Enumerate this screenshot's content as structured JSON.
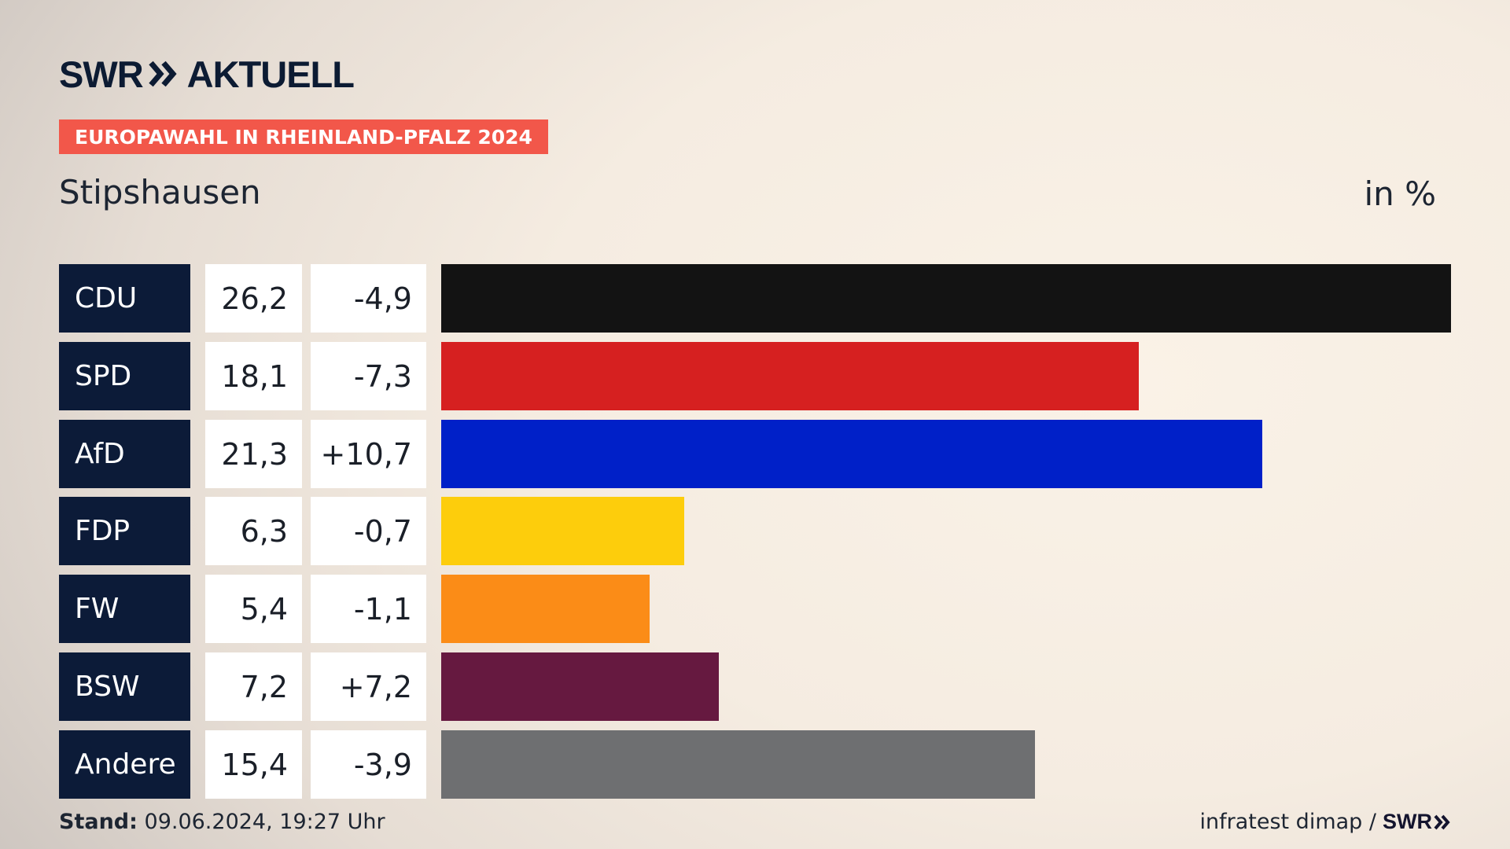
{
  "header": {
    "logo_left": "SWR",
    "logo_right": "AKTUELL",
    "tag": "EUROPAWAHL IN RHEINLAND-PFALZ 2024",
    "subtitle": "Stipshausen",
    "unit": "in %"
  },
  "colors": {
    "tag": "#f2574a",
    "party_box": "#0c1b38",
    "logo": "#0c1b33"
  },
  "chart_data": {
    "type": "bar",
    "orientation": "horizontal",
    "title": "Stipshausen",
    "unit": "in %",
    "categories": [
      "CDU",
      "SPD",
      "AfD",
      "FDP",
      "FW",
      "BSW",
      "Andere"
    ],
    "values": [
      26.2,
      18.1,
      21.3,
      6.3,
      5.4,
      7.2,
      15.4
    ],
    "value_labels": [
      "26,2",
      "18,1",
      "21,3",
      "6,3",
      "5,4",
      "7,2",
      "15,4"
    ],
    "changes": [
      -4.9,
      -7.3,
      10.7,
      -0.7,
      -1.1,
      7.2,
      -3.9
    ],
    "change_labels": [
      "-4,9",
      "-7,3",
      "+10,7",
      "-0,7",
      "-1,1",
      "+7,2",
      "-3,9"
    ],
    "colors": [
      "#131313",
      "#d62020",
      "#0020c8",
      "#fdcd0c",
      "#fb8c17",
      "#661940",
      "#6e6f71"
    ],
    "xlim": [
      0,
      26.2
    ]
  },
  "footer": {
    "stand_label": "Stand:",
    "stand_value": "09.06.2024, 19:27 Uhr",
    "source": "infratest dimap /",
    "source_logo": "SWR"
  }
}
